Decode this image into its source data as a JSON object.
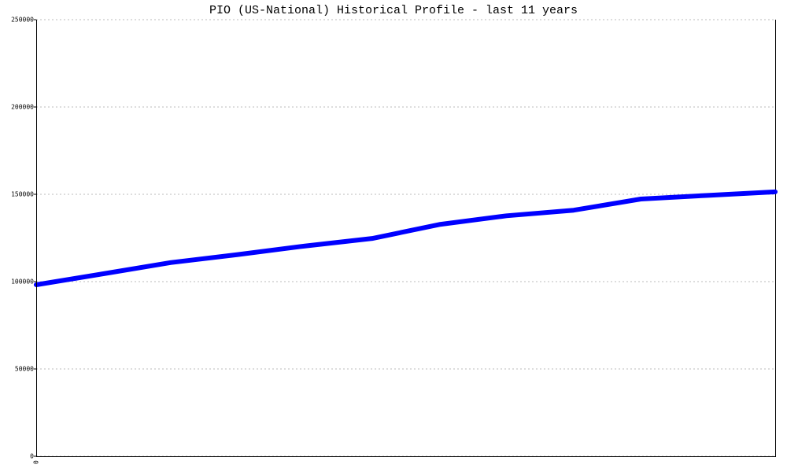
{
  "chart_data": {
    "type": "line",
    "title": "PIO (US-National) Historical Profile - last 11 years",
    "categories": [
      "0",
      null,
      null,
      null,
      null,
      null,
      null,
      null,
      null,
      null,
      null,
      null
    ],
    "series": [
      {
        "name": "PIO",
        "color": "#0000ff",
        "values": [
          98200,
          104500,
          110900,
          115500,
          120400,
          124700,
          132700,
          137700,
          140900,
          147300,
          149400,
          151400
        ]
      }
    ],
    "ylim": [
      0,
      250000
    ],
    "yticks": [
      0,
      50000,
      100000,
      150000,
      200000,
      250000
    ],
    "grid": true
  }
}
